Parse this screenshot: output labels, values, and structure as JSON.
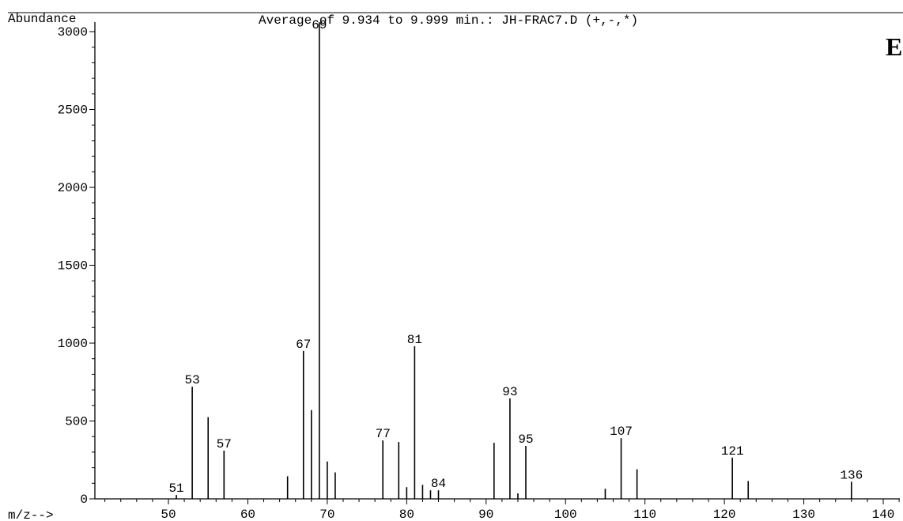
{
  "chart_data": {
    "type": "bar",
    "title": "Average of 9.934 to 9.999 min.: JH-FRAC7.D (+,-,*)",
    "panel_label": "E",
    "ylabel": "Abundance",
    "xlabel": "m/z-->",
    "xlim": [
      41,
      145
    ],
    "ylim": [
      0,
      3000
    ],
    "x_ticks": [
      50,
      60,
      70,
      80,
      90,
      100,
      110,
      120,
      130,
      140
    ],
    "y_ticks": [
      0,
      500,
      1000,
      1500,
      2000,
      2500,
      3000
    ],
    "grid": false,
    "series": [
      {
        "values": [
          {
            "x": 51,
            "y": 25
          },
          {
            "x": 53,
            "y": 720
          },
          {
            "x": 55,
            "y": 525
          },
          {
            "x": 57,
            "y": 310
          },
          {
            "x": 65,
            "y": 145
          },
          {
            "x": 67,
            "y": 950
          },
          {
            "x": 68,
            "y": 570
          },
          {
            "x": 69,
            "y": 3060
          },
          {
            "x": 70,
            "y": 240
          },
          {
            "x": 71,
            "y": 170
          },
          {
            "x": 77,
            "y": 375
          },
          {
            "x": 79,
            "y": 365
          },
          {
            "x": 80,
            "y": 75
          },
          {
            "x": 81,
            "y": 980
          },
          {
            "x": 82,
            "y": 90
          },
          {
            "x": 83,
            "y": 55
          },
          {
            "x": 84,
            "y": 55
          },
          {
            "x": 91,
            "y": 360
          },
          {
            "x": 93,
            "y": 645
          },
          {
            "x": 94,
            "y": 35
          },
          {
            "x": 95,
            "y": 340
          },
          {
            "x": 105,
            "y": 65
          },
          {
            "x": 107,
            "y": 390
          },
          {
            "x": 109,
            "y": 190
          },
          {
            "x": 121,
            "y": 265
          },
          {
            "x": 123,
            "y": 115
          },
          {
            "x": 136,
            "y": 110
          }
        ]
      }
    ],
    "peak_labels": [
      {
        "x": 51,
        "y": 25,
        "text": "51"
      },
      {
        "x": 53,
        "y": 720,
        "text": "53"
      },
      {
        "x": 57,
        "y": 310,
        "text": "57"
      },
      {
        "x": 67,
        "y": 950,
        "text": "67"
      },
      {
        "x": 69,
        "y": 3060,
        "text": "69"
      },
      {
        "x": 77,
        "y": 375,
        "text": "77"
      },
      {
        "x": 81,
        "y": 980,
        "text": "81"
      },
      {
        "x": 84,
        "y": 55,
        "text": "84"
      },
      {
        "x": 93,
        "y": 645,
        "text": "93"
      },
      {
        "x": 95,
        "y": 340,
        "text": "95"
      },
      {
        "x": 107,
        "y": 390,
        "text": "107"
      },
      {
        "x": 121,
        "y": 265,
        "text": "121"
      },
      {
        "x": 136,
        "y": 110,
        "text": "136"
      }
    ]
  }
}
